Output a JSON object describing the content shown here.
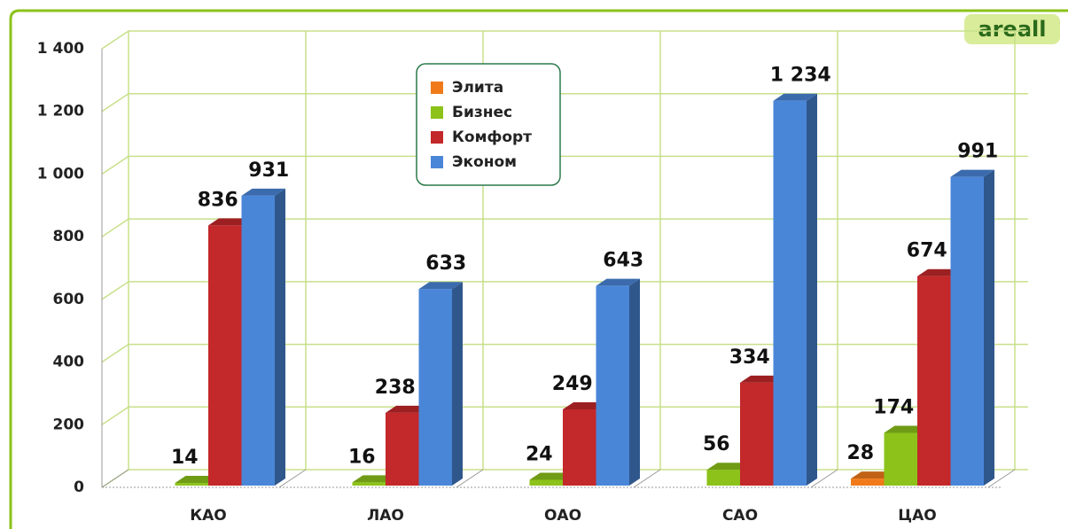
{
  "chart_data": {
    "type": "bar3d",
    "logo": "areall",
    "categories": [
      "КАО",
      "ЛАО",
      "ОАО",
      "САО",
      "ЦАО"
    ],
    "series": [
      {
        "name": "Элита",
        "color": "#f07a1a",
        "values": [
          null,
          null,
          null,
          null,
          28
        ]
      },
      {
        "name": "Бизнес",
        "color": "#8cc21a",
        "values": [
          14,
          16,
          24,
          56,
          174
        ]
      },
      {
        "name": "Комфорт",
        "color": "#c3282a",
        "values": [
          836,
          238,
          249,
          334,
          674
        ]
      },
      {
        "name": "Эконом",
        "color": "#4a86d8",
        "values": [
          931,
          633,
          643,
          1234,
          991
        ],
        "value_labels": [
          "931",
          "633",
          "643",
          "1 234",
          "991"
        ]
      }
    ],
    "ylim": [
      0,
      1400
    ],
    "yticks": [
      0,
      200,
      400,
      600,
      800,
      {
        "value": 1000,
        "label": "1 000"
      },
      {
        "value": 1200,
        "label": "1 200"
      },
      {
        "value": 1400,
        "label": "1 400"
      }
    ],
    "grid": true
  }
}
